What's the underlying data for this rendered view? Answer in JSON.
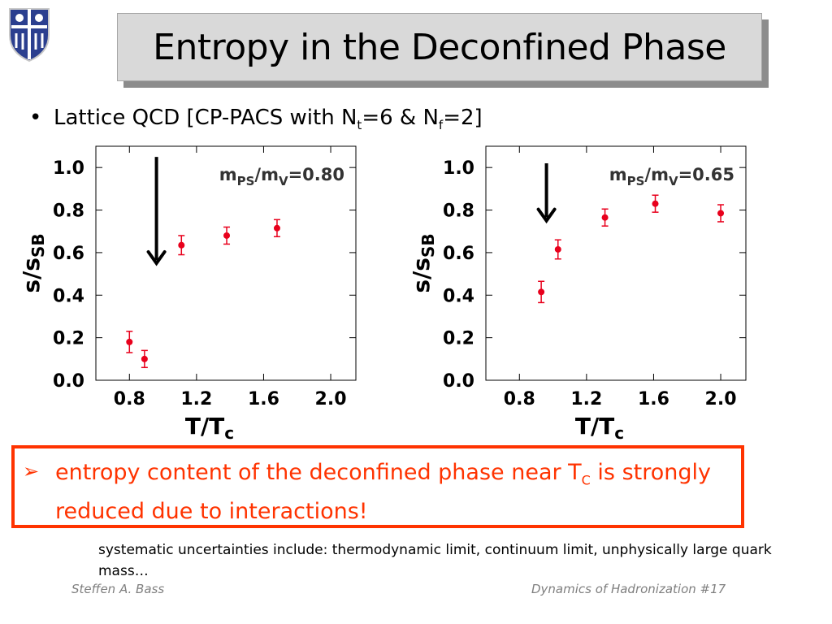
{
  "slide": {
    "title": "Entropy in the Deconfined Phase",
    "bullet": {
      "prefix": "Lattice QCD [CP-PACS  with N",
      "sub1": "t",
      "mid": "=6 & N",
      "sub2": "f",
      "suffix": "=2]"
    },
    "callout": {
      "arrow": "➢",
      "text_before": "entropy content of the deconfined phase near T",
      "sub": "C",
      "text_after": " is strongly reduced due to interactions!",
      "color": "#ff3300"
    },
    "note": "systematic uncertainties include: thermodynamic limit, continuum limit, unphysically large quark mass…",
    "footer_left": "Steffen A. Bass",
    "footer_right": "Dynamics of Hadronization  #17"
  },
  "colors": {
    "marker": "#e8001c",
    "arrow": "#000000",
    "title_bg": "#d9d9d9"
  },
  "icons": {
    "logo": "university-shield-icon"
  },
  "chart_data": [
    {
      "type": "scatter",
      "annotation": "m_PS/m_V=0.80",
      "annotation_main": "m",
      "annotation_sub1": "PS",
      "annotation_mid": "/m",
      "annotation_sub2": "V",
      "annotation_value": "=0.80",
      "xlabel_main": "T/T",
      "xlabel_sub": "c",
      "ylabel_main": "s/s",
      "ylabel_sub": "SB",
      "xlim": [
        0.6,
        2.15
      ],
      "ylim": [
        0.0,
        1.1
      ],
      "xticks": [
        0.8,
        1.2,
        1.6,
        2.0
      ],
      "xtick_labels": [
        "0.8",
        "1.2",
        "1.6",
        "2.0"
      ],
      "yticks": [
        0.0,
        0.2,
        0.4,
        0.6,
        0.8,
        1.0
      ],
      "ytick_labels": [
        "0.0",
        "0.2",
        "0.4",
        "0.6",
        "0.8",
        "1.0"
      ],
      "points": [
        {
          "x": 0.8,
          "y": 0.18,
          "err": 0.05
        },
        {
          "x": 0.89,
          "y": 0.1,
          "err": 0.04
        },
        {
          "x": 1.11,
          "y": 0.635,
          "err": 0.045
        },
        {
          "x": 1.38,
          "y": 0.68,
          "err": 0.04
        },
        {
          "x": 1.68,
          "y": 0.715,
          "err": 0.04
        }
      ],
      "arrow_x": 1.0,
      "arrow_y_top": 1.05,
      "arrow_y_bottom": 0.55
    },
    {
      "type": "scatter",
      "annotation": "m_PS/m_V=0.65",
      "annotation_main": "m",
      "annotation_sub1": "PS",
      "annotation_mid": "/m",
      "annotation_sub2": "V",
      "annotation_value": "=0.65",
      "xlabel_main": "T/T",
      "xlabel_sub": "c",
      "ylabel_main": "s/s",
      "ylabel_sub": "SB",
      "xlim": [
        0.6,
        2.15
      ],
      "ylim": [
        0.0,
        1.1
      ],
      "xticks": [
        0.8,
        1.2,
        1.6,
        2.0
      ],
      "xtick_labels": [
        "0.8",
        "1.2",
        "1.6",
        "2.0"
      ],
      "yticks": [
        0.0,
        0.2,
        0.4,
        0.6,
        0.8,
        1.0
      ],
      "ytick_labels": [
        "0.0",
        "0.2",
        "0.4",
        "0.6",
        "0.8",
        "1.0"
      ],
      "points": [
        {
          "x": 0.93,
          "y": 0.415,
          "err": 0.05
        },
        {
          "x": 1.03,
          "y": 0.615,
          "err": 0.045
        },
        {
          "x": 1.31,
          "y": 0.765,
          "err": 0.04
        },
        {
          "x": 1.61,
          "y": 0.83,
          "err": 0.04
        },
        {
          "x": 2.0,
          "y": 0.785,
          "err": 0.04
        }
      ],
      "arrow_x": 1.0,
      "arrow_y_top": 1.02,
      "arrow_y_bottom": 0.75
    }
  ]
}
